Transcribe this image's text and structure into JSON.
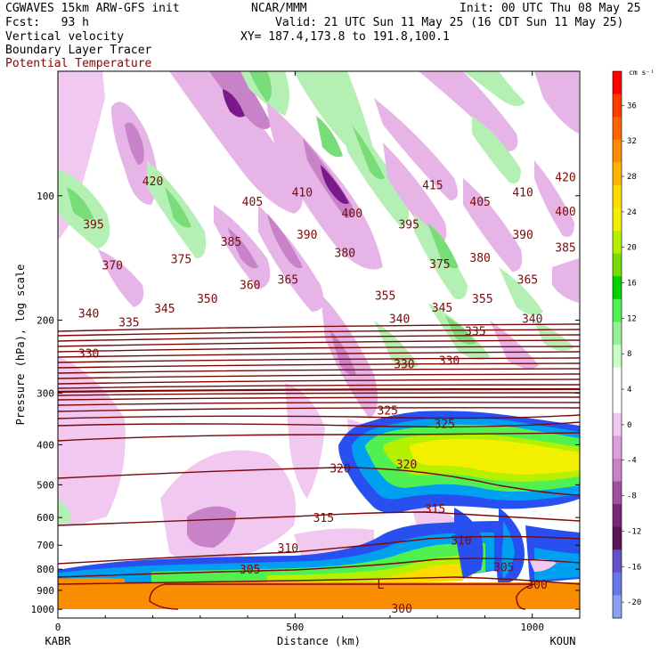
{
  "header": {
    "model": "CGWAVES 15km ARW-GFS init",
    "fcst_label": "Fcst:",
    "fcst_value": "93 h",
    "field1": "Vertical velocity",
    "field2": "Boundary Layer Tracer",
    "field3": "Potential Temperature",
    "org": "NCAR/MMM",
    "init": "Init: 00 UTC Thu 08 May 25",
    "valid": "Valid: 21 UTC Sun 11 May 25 (16 CDT Sun 11 May 25)",
    "xy": "XY= 187.4,173.8 to 191.8,100.1"
  },
  "colors": {
    "theta": "#7a0a0a",
    "pink": "#e6b4e6",
    "purple": "#b45ab4",
    "darkpurple": "#7a1a8a",
    "lightgreen": "#b4f0b4",
    "green": "#78dc78",
    "orange": "#fa8c00",
    "yellow": "#f0f000",
    "blue": "#2850f0",
    "cyan": "#00a0f0"
  },
  "chart_data": {
    "type": "contour",
    "title": "",
    "xlabel": "Distance (km)",
    "ylabel": "Pressure (hPa), log scale",
    "x_ticks": [
      "0",
      "500",
      "1000"
    ],
    "y_ticks": [
      "100",
      "200",
      "300",
      "400",
      "500",
      "600",
      "700",
      "800",
      "900",
      "1000"
    ],
    "left_station": "KABR",
    "right_station": "KOUN",
    "colorbar_unit": "cm s⁻¹",
    "colorbar_ticks": [
      "36",
      "32",
      "28",
      "24",
      "20",
      "16",
      "12",
      "8",
      "4",
      "0",
      "-4",
      "-8",
      "-12",
      "-16",
      "-20"
    ],
    "colorbar_colors": [
      "#ff0000",
      "#ff3c00",
      "#ff6400",
      "#fa8c00",
      "#ffb400",
      "#ffdc00",
      "#f0f000",
      "#b4f000",
      "#78dc00",
      "#00d200",
      "#50f050",
      "#96f096",
      "#c8ffc8",
      "#ffffff",
      "#ffffff",
      "#f0c8f0",
      "#dca0dc",
      "#c882c8",
      "#a050a0",
      "#782878",
      "#5a145a",
      "#6450c8",
      "#6478e6",
      "#8ca0f0"
    ],
    "theta_labels": [
      {
        "text": "420",
        "x": 200,
        "p": 92
      },
      {
        "text": "420",
        "x": 1070,
        "p": 90
      },
      {
        "text": "415",
        "x": 790,
        "p": 94
      },
      {
        "text": "410",
        "x": 515,
        "p": 98
      },
      {
        "text": "410",
        "x": 980,
        "p": 98
      },
      {
        "text": "405",
        "x": 410,
        "p": 103
      },
      {
        "text": "405",
        "x": 890,
        "p": 103
      },
      {
        "text": "400",
        "x": 620,
        "p": 110
      },
      {
        "text": "400",
        "x": 1070,
        "p": 109
      },
      {
        "text": "395",
        "x": 75,
        "p": 117
      },
      {
        "text": "395",
        "x": 740,
        "p": 117
      },
      {
        "text": "390",
        "x": 525,
        "p": 124
      },
      {
        "text": "390",
        "x": 980,
        "p": 124
      },
      {
        "text": "385",
        "x": 365,
        "p": 129
      },
      {
        "text": "385",
        "x": 1070,
        "p": 133
      },
      {
        "text": "380",
        "x": 605,
        "p": 137
      },
      {
        "text": "380",
        "x": 890,
        "p": 141
      },
      {
        "text": "375",
        "x": 260,
        "p": 142
      },
      {
        "text": "375",
        "x": 805,
        "p": 146
      },
      {
        "text": "370",
        "x": 115,
        "p": 147
      },
      {
        "text": "365",
        "x": 485,
        "p": 159
      },
      {
        "text": "365",
        "x": 990,
        "p": 159
      },
      {
        "text": "360",
        "x": 405,
        "p": 164
      },
      {
        "text": "355",
        "x": 690,
        "p": 174
      },
      {
        "text": "355",
        "x": 895,
        "p": 177
      },
      {
        "text": "350",
        "x": 315,
        "p": 177
      },
      {
        "text": "345",
        "x": 225,
        "p": 187
      },
      {
        "text": "345",
        "x": 810,
        "p": 186
      },
      {
        "text": "340",
        "x": 65,
        "p": 192
      },
      {
        "text": "340",
        "x": 720,
        "p": 198
      },
      {
        "text": "340",
        "x": 1000,
        "p": 198
      },
      {
        "text": "335",
        "x": 150,
        "p": 202
      },
      {
        "text": "335",
        "x": 880,
        "p": 212
      },
      {
        "text": "330",
        "x": 65,
        "p": 240
      },
      {
        "text": "330",
        "x": 730,
        "p": 255
      },
      {
        "text": "330",
        "x": 825,
        "p": 250
      },
      {
        "text": "325",
        "x": 695,
        "p": 330
      },
      {
        "text": "325",
        "x": 815,
        "p": 355
      },
      {
        "text": "320",
        "x": 595,
        "p": 455
      },
      {
        "text": "320",
        "x": 735,
        "p": 445
      },
      {
        "text": "315",
        "x": 560,
        "p": 600
      },
      {
        "text": "315",
        "x": 795,
        "p": 570
      },
      {
        "text": "310",
        "x": 485,
        "p": 710
      },
      {
        "text": "310",
        "x": 850,
        "p": 680
      },
      {
        "text": "305",
        "x": 405,
        "p": 800
      },
      {
        "text": "305",
        "x": 940,
        "p": 790
      },
      {
        "text": "300",
        "x": 725,
        "p": 995
      },
      {
        "text": "300",
        "x": 1010,
        "p": 870
      }
    ],
    "low_marker": {
      "text": "L",
      "x": 680,
      "p": 870
    },
    "xlim": [
      0,
      1100
    ],
    "ylim_hPa": [
      1050,
      50
    ]
  }
}
